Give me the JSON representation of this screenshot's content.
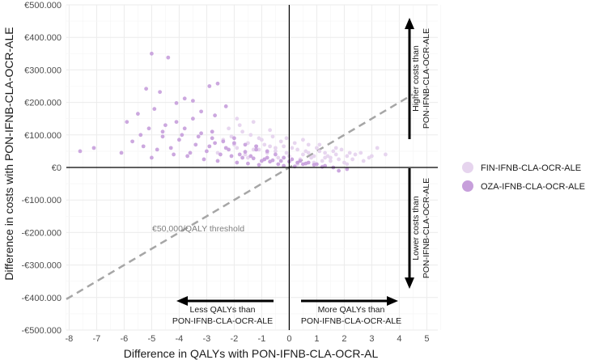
{
  "chart_data": {
    "type": "scatter",
    "title": "",
    "xlabel": "Difference in QALYs with PON-IFNB-CLA-OCR-AL",
    "ylabel": "Difference in costs with PON-IFNB-CLA-OCR-ALE",
    "xlim": [
      -8.1,
      5.4
    ],
    "ylim": [
      -500000,
      500000
    ],
    "x_ticks": [
      -8,
      -7,
      -6,
      -5,
      -4,
      -3,
      -2,
      -1,
      0,
      1,
      2,
      3,
      4,
      5
    ],
    "y_ticks": [
      {
        "value": 500000,
        "label": "€500.000"
      },
      {
        "value": 400000,
        "label": "€400.000"
      },
      {
        "value": 300000,
        "label": "€300.000"
      },
      {
        "value": 200000,
        "label": "€200.000"
      },
      {
        "value": 100000,
        "label": "€100.000"
      },
      {
        "value": 0,
        "label": "€0"
      },
      {
        "value": -100000,
        "label": "-€100.000"
      },
      {
        "value": -200000,
        "label": "-€200.000"
      },
      {
        "value": -300000,
        "label": "-€300.000"
      },
      {
        "value": -400000,
        "label": "-€400.000"
      },
      {
        "value": -500000,
        "label": "-€500.000"
      }
    ],
    "grid": true,
    "legend_position": "right",
    "threshold": {
      "label": "€50,000/QALY threshold",
      "slope": 50000,
      "color": "#a6a6a6"
    },
    "series": [
      {
        "name": "FIN-IFNB-CLA-OCR-ALE",
        "color": "#e6d4ee",
        "x": [
          -2.4,
          -2.1,
          -1.9,
          -1.7,
          -1.5,
          -1.3,
          -1.1,
          -0.9,
          -0.7,
          -0.5,
          -0.3,
          -0.1,
          0.1,
          0.3,
          0.5,
          0.7,
          0.9,
          1.1,
          1.3,
          1.5,
          1.7,
          1.9,
          2.1,
          2.3,
          2.6,
          2.9,
          3.2,
          3.5,
          -2.2,
          -1.8,
          -1.4,
          -1.0,
          -0.6,
          -0.2,
          0.2,
          0.6,
          1.0,
          1.4,
          1.8,
          2.2,
          2.7,
          -2.6,
          -2.0,
          -1.6,
          -1.2,
          -0.8,
          -0.4,
          0.0,
          0.4,
          0.8,
          1.2,
          1.6,
          2.0,
          2.4,
          3.0,
          -1.9,
          -1.3,
          -0.7,
          -0.1,
          0.5,
          1.1,
          1.7,
          -2.8,
          -1.5,
          -0.9,
          0.3,
          0.9,
          1.5,
          2.1,
          -1.1,
          -0.5,
          0.7,
          1.3
        ],
        "y": [
          85000,
          95000,
          60000,
          110000,
          75000,
          55000,
          90000,
          70000,
          65000,
          50000,
          80000,
          45000,
          60000,
          55000,
          40000,
          70000,
          35000,
          50000,
          45000,
          30000,
          40000,
          55000,
          35000,
          25000,
          45000,
          30000,
          60000,
          40000,
          120000,
          130000,
          100000,
          85000,
          95000,
          65000,
          75000,
          50000,
          60000,
          35000,
          25000,
          45000,
          20000,
          45000,
          70000,
          40000,
          65000,
          45000,
          30000,
          35000,
          25000,
          30000,
          20000,
          50000,
          15000,
          40000,
          35000,
          150000,
          140000,
          115000,
          90000,
          85000,
          70000,
          60000,
          110000,
          30000,
          25000,
          10000,
          15000,
          20000,
          10000,
          55000,
          60000,
          45000,
          30000
        ]
      },
      {
        "name": "OZA-IFNB-CLA-OCR-ALE",
        "color": "#c79fdb",
        "x": [
          -5.0,
          -4.4,
          -2.6,
          -2.9,
          -5.2,
          -4.7,
          -3.8,
          -3.5,
          -4.1,
          -2.3,
          -4.9,
          -5.5,
          -3.2,
          -2.7,
          -7.6,
          -7.1,
          -5.9,
          -5.1,
          -4.6,
          -3.9,
          -3.3,
          -2.8,
          -2.4,
          -2.0,
          -1.6,
          -1.2,
          -0.8,
          -0.5,
          -0.2,
          0.1,
          0.4,
          0.7,
          1.0,
          1.3,
          1.6,
          2.1,
          -5.7,
          -5.3,
          -4.8,
          -4.3,
          -3.6,
          -3.0,
          -2.5,
          -2.1,
          -1.7,
          -1.3,
          -0.9,
          -0.6,
          -0.3,
          0.0,
          0.3,
          0.6,
          0.9,
          1.2,
          -4.5,
          -4.0,
          -3.4,
          -2.9,
          -2.2,
          -1.8,
          -1.4,
          -1.0,
          -0.7,
          -0.4,
          -5.0,
          -4.2,
          -3.7,
          -3.1,
          -2.6,
          -1.9,
          -1.5,
          -1.1,
          -0.2,
          0.2,
          -4.6,
          -3.8,
          -3.2,
          -2.7,
          -2.3,
          -1.6,
          -0.8,
          0.5,
          1.8,
          -6.1,
          -5.4,
          -4.1,
          -3.5,
          -2.8,
          -2.0,
          -1.2
        ],
        "y": [
          350000,
          338000,
          258000,
          250000,
          242000,
          232000,
          212000,
          205000,
          198000,
          188000,
          180000,
          165000,
          172000,
          160000,
          50000,
          60000,
          140000,
          120000,
          110000,
          100000,
          95000,
          90000,
          80000,
          75000,
          70000,
          55000,
          50000,
          40000,
          30000,
          25000,
          20000,
          15000,
          10000,
          5000,
          0,
          -5000,
          80000,
          65000,
          55000,
          60000,
          45000,
          50000,
          40000,
          35000,
          30000,
          28000,
          25000,
          22000,
          20000,
          18000,
          15000,
          12000,
          8000,
          2000,
          130000,
          85000,
          70000,
          65000,
          55000,
          40000,
          35000,
          20000,
          18000,
          10000,
          30000,
          40000,
          35000,
          25000,
          20000,
          15000,
          12000,
          8000,
          5000,
          3000,
          95000,
          120000,
          105000,
          75000,
          60000,
          48000,
          30000,
          10000,
          -10000,
          45000,
          100000,
          140000,
          150000,
          110000,
          90000,
          65000
        ]
      }
    ],
    "annotations": {
      "higher_costs": [
        "Higher costs than",
        "PON-IFNB-CLA-OCR-ALE"
      ],
      "lower_costs": [
        "Lower costs than",
        "PON-IFNB-CLA-OCR-ALE"
      ],
      "less_qalys": [
        "Less QALYs than",
        "PON-IFNB-CLA-OCR-ALE"
      ],
      "more_qalys": [
        "More QALYs than",
        "PON-IFNB-CLA-OCR-ALE"
      ]
    }
  }
}
